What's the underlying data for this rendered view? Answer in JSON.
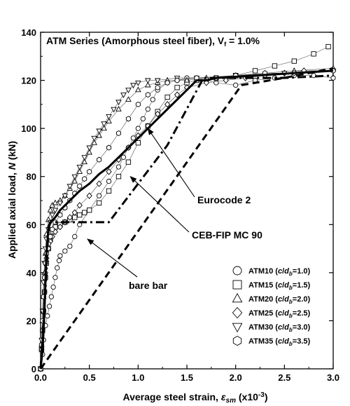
{
  "chart_data": {
    "type": "scatter",
    "title": "ATM Series (Amorphous steel fiber), V_f = 1.0%",
    "title_parts": {
      "main": "ATM Series (Amorphous steel fiber), V",
      "sub": "f",
      "tail": " = 1.0%"
    },
    "xlabel": "Average steel strain, ε_sm (x10^-3)",
    "xlabel_parts": {
      "main": "Average steel strain, ",
      "sym": "ε",
      "sub": "sm",
      "unit": " (x10",
      "sup": "-3",
      "close": ")"
    },
    "ylabel": "Applied axial load, N (kN)",
    "ylabel_parts": {
      "main": "Applied axial load, ",
      "sym": "N",
      "unit": " (kN)"
    },
    "xlim": [
      0.0,
      3.0
    ],
    "ylim": [
      0,
      140
    ],
    "x_ticks": [
      "0.0",
      "0.5",
      "1.0",
      "1.5",
      "2.0",
      "2.5",
      "3.0"
    ],
    "y_ticks": [
      "0",
      "20",
      "40",
      "60",
      "80",
      "100",
      "120",
      "140"
    ],
    "grid": false,
    "legend_position": "bottom-right",
    "series": [
      {
        "name": "ATM10 (c/d_b=1.0)",
        "legend": {
          "label": "ATM10 (",
          "c": "c",
          "slash": "/",
          "d": "d",
          "sub": "b",
          "val": "=1.0)"
        },
        "marker": "circle",
        "x": [
          0.0,
          0.02,
          0.03,
          0.05,
          0.07,
          0.09,
          0.11,
          0.13,
          0.15,
          0.17,
          0.19,
          0.2,
          0.25,
          0.3,
          0.35,
          0.4,
          0.5,
          0.6,
          0.7,
          0.8,
          0.85,
          0.9,
          0.95,
          1.0,
          1.05,
          1.1,
          1.15,
          1.2,
          1.3,
          1.4,
          1.5,
          1.6,
          1.7,
          1.8,
          2.0,
          2.2,
          2.4,
          2.6,
          2.8,
          3.0
        ],
        "y": [
          0,
          6,
          12,
          18,
          22,
          26,
          30,
          34,
          38,
          42,
          45,
          47,
          49,
          51,
          55,
          60,
          66,
          72,
          78,
          84,
          88,
          92,
          96,
          100,
          104,
          108,
          112,
          116,
          119,
          120,
          121,
          121,
          120,
          119,
          118,
          120,
          121,
          122,
          122,
          121
        ]
      },
      {
        "name": "ATM15 (c/d_b=1.5)",
        "legend": {
          "label": "ATM15 (",
          "c": "c",
          "slash": "/",
          "d": "d",
          "sub": "b",
          "val": "=1.5)"
        },
        "marker": "square",
        "x": [
          0.0,
          0.01,
          0.02,
          0.03,
          0.04,
          0.05,
          0.06,
          0.08,
          0.1,
          0.12,
          0.15,
          0.2,
          0.25,
          0.3,
          0.35,
          0.4,
          0.45,
          0.5,
          0.6,
          0.7,
          0.8,
          0.9,
          1.0,
          1.1,
          1.2,
          1.3,
          1.4,
          1.5,
          1.6,
          1.8,
          2.0,
          2.2,
          2.4,
          2.6,
          2.8,
          2.95
        ],
        "y": [
          0,
          8,
          16,
          24,
          32,
          38,
          44,
          50,
          54,
          57,
          59,
          60,
          61,
          62,
          63,
          64,
          65,
          66,
          69,
          74,
          80,
          86,
          94,
          101,
          107,
          113,
          117,
          119,
          120,
          121,
          122,
          124,
          126,
          128,
          131,
          134
        ]
      },
      {
        "name": "ATM20 (c/d_b=2.0)",
        "legend": {
          "label": "ATM20 (",
          "c": "c",
          "slash": "/",
          "d": "d",
          "sub": "b",
          "val": "=2.0)"
        },
        "marker": "triangle",
        "x": [
          0.0,
          0.01,
          0.02,
          0.03,
          0.04,
          0.05,
          0.06,
          0.08,
          0.1,
          0.12,
          0.15,
          0.2,
          0.25,
          0.3,
          0.35,
          0.4,
          0.45,
          0.5,
          0.55,
          0.6,
          0.65,
          0.7,
          0.8,
          0.9,
          1.0,
          1.1,
          1.2,
          1.3,
          1.5,
          1.7,
          2.0,
          2.3,
          2.6,
          3.0
        ],
        "y": [
          0,
          10,
          20,
          30,
          40,
          48,
          56,
          62,
          66,
          68,
          69,
          70,
          72,
          75,
          78,
          82,
          86,
          90,
          94,
          97,
          100,
          103,
          108,
          112,
          116,
          118,
          119,
          120,
          120,
          121,
          122,
          123,
          124,
          125
        ]
      },
      {
        "name": "ATM25 (c/d_b=2.5)",
        "legend": {
          "label": "ATM25 (",
          "c": "c",
          "slash": "/",
          "d": "d",
          "sub": "b",
          "val": "=2.5)"
        },
        "marker": "diamond",
        "x": [
          0.0,
          0.01,
          0.02,
          0.03,
          0.04,
          0.05,
          0.06,
          0.08,
          0.1,
          0.12,
          0.15,
          0.2,
          0.25,
          0.3,
          0.35,
          0.4,
          0.5,
          0.6,
          0.7,
          0.8,
          0.9,
          1.0,
          1.1,
          1.2,
          1.3,
          1.4,
          1.5,
          1.7,
          1.9,
          2.1,
          2.3,
          2.5,
          2.7,
          3.0
        ],
        "y": [
          0,
          8,
          16,
          24,
          32,
          40,
          46,
          50,
          53,
          55,
          57,
          59,
          61,
          63,
          65,
          68,
          72,
          77,
          82,
          87,
          92,
          97,
          101,
          106,
          110,
          114,
          117,
          119,
          120,
          121,
          122,
          123,
          124,
          124
        ]
      },
      {
        "name": "ATM30 (c/d_b=3.0)",
        "legend": {
          "label": "ATM30 (",
          "c": "c",
          "slash": "/",
          "d": "d",
          "sub": "b",
          "val": "=3.0)"
        },
        "marker": "triangle-down",
        "x": [
          0.0,
          0.01,
          0.02,
          0.03,
          0.04,
          0.05,
          0.06,
          0.08,
          0.1,
          0.12,
          0.15,
          0.2,
          0.25,
          0.3,
          0.35,
          0.4,
          0.45,
          0.5,
          0.55,
          0.6,
          0.65,
          0.7,
          0.75,
          0.8,
          0.85,
          0.9,
          0.95,
          1.0,
          1.1,
          1.2,
          1.4,
          1.6,
          2.0,
          2.5,
          3.0
        ],
        "y": [
          0,
          12,
          24,
          36,
          44,
          50,
          54,
          58,
          61,
          64,
          66,
          69,
          72,
          76,
          80,
          84,
          88,
          92,
          96,
          99,
          102,
          105,
          108,
          111,
          114,
          116,
          118,
          119,
          120,
          120,
          121,
          121,
          122,
          123,
          124
        ]
      },
      {
        "name": "ATM35 (c/d_b=3.5)",
        "legend": {
          "label": "ATM35 (",
          "c": "c",
          "slash": "/",
          "d": "d",
          "sub": "b",
          "val": "=3.5)"
        },
        "marker": "hexagon",
        "x": [
          0.0,
          0.01,
          0.02,
          0.03,
          0.04,
          0.05,
          0.06,
          0.08,
          0.1,
          0.12,
          0.15,
          0.2,
          0.25,
          0.3,
          0.35,
          0.4,
          0.45,
          0.5,
          0.6,
          0.7,
          0.8,
          0.9,
          1.0,
          1.1,
          1.2,
          1.3,
          1.4,
          1.6,
          1.8,
          2.0,
          2.3,
          2.6,
          3.0
        ],
        "y": [
          0,
          10,
          20,
          30,
          38,
          44,
          48,
          52,
          55,
          58,
          61,
          64,
          67,
          70,
          73,
          76,
          79,
          82,
          87,
          92,
          98,
          104,
          110,
          114,
          117,
          119,
          120,
          121,
          121,
          122,
          123,
          123,
          124
        ]
      }
    ],
    "model_lines": [
      {
        "label": "Eurocode 2",
        "style": "solid",
        "x": [
          0.0,
          0.02,
          0.04,
          0.06,
          0.08,
          0.1,
          0.15,
          0.2,
          0.3,
          0.4,
          0.5,
          0.6,
          0.7,
          0.8,
          0.9,
          1.0,
          1.2,
          1.4,
          1.6,
          1.7,
          1.8,
          2.2,
          2.6,
          3.0
        ],
        "y": [
          0,
          8,
          25,
          48,
          58,
          61,
          63,
          66,
          70,
          74,
          77,
          81,
          84,
          88,
          92,
          96,
          104,
          112,
          120,
          120,
          121,
          122,
          123,
          124
        ]
      },
      {
        "label": "CEB-FIP MC 90",
        "style": "dashdot",
        "x": [
          0.0,
          0.06,
          0.08,
          0.1,
          0.6,
          0.7,
          1.0,
          1.3,
          1.67,
          2.0,
          2.5,
          3.0
        ],
        "y": [
          0,
          40,
          59,
          61,
          61,
          61,
          77,
          93,
          121,
          121,
          121,
          122
        ]
      },
      {
        "label": "bare bar",
        "style": "dashed",
        "x": [
          0.0,
          2.06,
          2.5,
          3.0
        ],
        "y": [
          0,
          118,
          121,
          125
        ]
      }
    ],
    "annotations": [
      {
        "text": "Eurocode 2",
        "arrow_to_x": 1.1,
        "arrow_to_y": 100
      },
      {
        "text": "CEB-FIP MC 90",
        "arrow_to_x": 0.92,
        "arrow_to_y": 80
      },
      {
        "text": "bare bar",
        "arrow_to_x": 0.48,
        "arrow_to_y": 54
      }
    ]
  }
}
